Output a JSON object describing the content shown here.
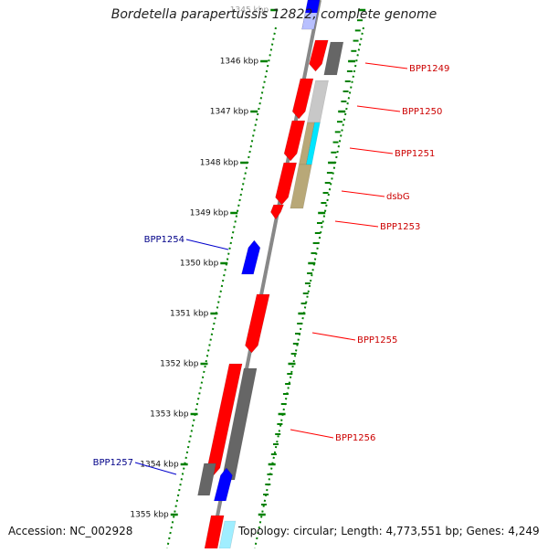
{
  "title": "Bordetella parapertussis 12822, complete genome",
  "footer": {
    "accession": "Accession: NC_002928",
    "topology": "Topology: circular; Length: 4,773,551 bp; Genes: 4,249"
  },
  "colors": {
    "red": "#ff0000",
    "dark_gray": "#666666",
    "light_gray": "#c8c8c8",
    "cyan": "#00e5ff",
    "light_cyan": "#a0eeff",
    "khaki": "#b8a878",
    "blue": "#0000ff",
    "light_blue": "#b8c0ff",
    "axis": "#888888",
    "tick": "#008000",
    "label_red": "#cc0000",
    "label_blue": "#000088"
  },
  "tick_labels": [
    "1345 kbp",
    "1346 kbp",
    "1347 kbp",
    "1348 kbp",
    "1349 kbp",
    "1350 kbp",
    "1351 kbp",
    "1352 kbp",
    "1353 kbp",
    "1354 kbp",
    "1355 kbp"
  ],
  "gene_labels": [
    {
      "name": "BPP1249",
      "side": "right"
    },
    {
      "name": "BPP1250",
      "side": "right"
    },
    {
      "name": "BPP1251",
      "side": "right"
    },
    {
      "name": "dsbG",
      "side": "right"
    },
    {
      "name": "BPP1253",
      "side": "right"
    },
    {
      "name": "BPP1254",
      "side": "left"
    },
    {
      "name": "BPP1255",
      "side": "right"
    },
    {
      "name": "BPP1256",
      "side": "right"
    },
    {
      "name": "BPP1257",
      "side": "left"
    }
  ]
}
